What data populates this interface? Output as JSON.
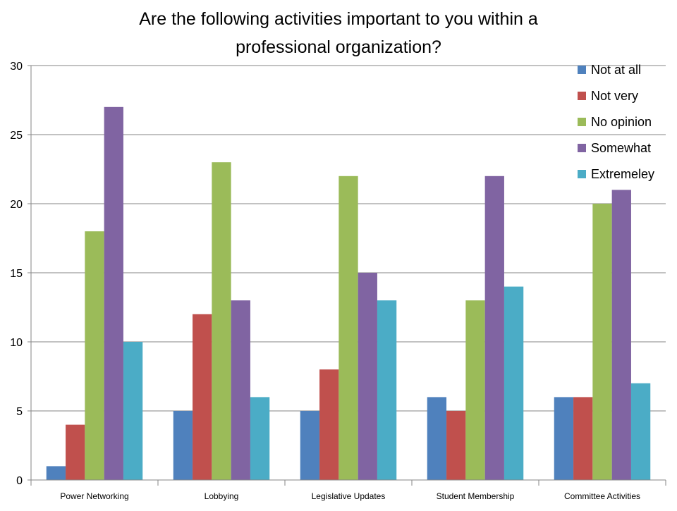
{
  "chart_data": {
    "type": "bar",
    "title_lines": [
      "Are the following activities important to you within a",
      "professional organization?"
    ],
    "xlabel": "",
    "ylabel": "",
    "ylim": [
      0,
      30
    ],
    "yticks": [
      "0",
      "5",
      "10",
      "15",
      "20",
      "25",
      "30"
    ],
    "grid": true,
    "legend_position": "top-right",
    "categories": [
      "Power Networking",
      "Lobbying",
      "Legislative Updates",
      "Student Membership",
      "Committee Activities"
    ],
    "series": [
      {
        "name": "Not at all",
        "color": "#4F81BD",
        "values": [
          1,
          5,
          5,
          6,
          6
        ]
      },
      {
        "name": "Not very",
        "color": "#C0504D",
        "values": [
          4,
          12,
          8,
          5,
          6
        ]
      },
      {
        "name": "No opinion",
        "color": "#9BBB59",
        "values": [
          18,
          23,
          22,
          13,
          20
        ]
      },
      {
        "name": "Somewhat",
        "color": "#8064A2",
        "values": [
          27,
          13,
          15,
          22,
          21
        ]
      },
      {
        "name": "Extremeley",
        "color": "#4BACC6",
        "values": [
          10,
          6,
          13,
          14,
          7
        ]
      }
    ]
  }
}
